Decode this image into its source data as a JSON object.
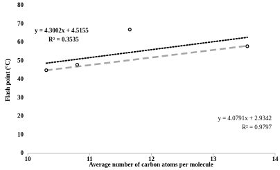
{
  "chart_data": {
    "type": "scatter",
    "x_label": "Average number of carbon atoms per molecule",
    "y_label": "Flash point (°C)",
    "x": [
      10.3,
      10.8,
      11.65,
      13.55
    ],
    "values": [
      45,
      48,
      67,
      58
    ],
    "color": "#000000",
    "xlim": [
      10,
      14
    ],
    "xticks": [
      10,
      11,
      12,
      13,
      14
    ],
    "ylim": [
      0,
      80
    ],
    "yticks": [
      0,
      10,
      20,
      30,
      40,
      50,
      60,
      70,
      80
    ],
    "grid": false,
    "trendlines": [
      {
        "label": "y = 4.3002x + 4.5155",
        "r2_label": "R² = 0.3535",
        "slope": 4.3002,
        "intercept": 4.5155,
        "x_range": [
          10.3,
          13.55
        ],
        "color": "#000000",
        "style": "dotted"
      },
      {
        "label": "y = 4.0791x + 2.9342",
        "r2_label": "R² = 0.9797",
        "slope": 4.0791,
        "intercept": 2.9342,
        "x_range": [
          10.3,
          13.55
        ],
        "color": "#a6a6a6",
        "style": "dashed"
      }
    ]
  }
}
